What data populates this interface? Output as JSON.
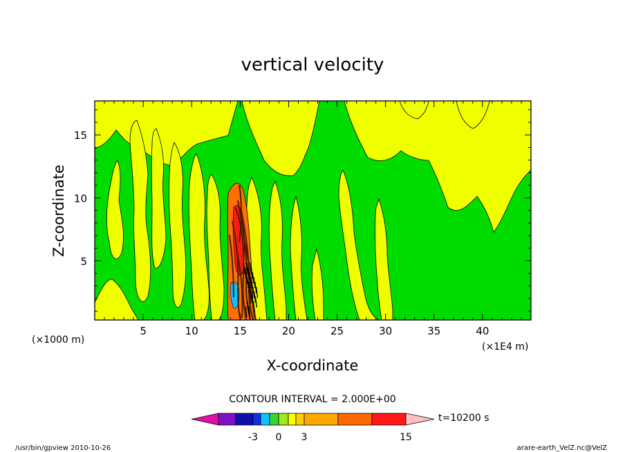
{
  "chart_data": {
    "type": "contour",
    "title": "vertical velocity",
    "xlabel": "X-coordinate",
    "ylabel": "Z-coordinate",
    "x_unit_label": "(×1000 m)",
    "x_scale_label": "(×1E4 m)",
    "xlim": [
      0,
      45
    ],
    "ylim": [
      0.3,
      17.7
    ],
    "x_ticks": [
      5,
      10,
      15,
      20,
      25,
      30,
      35,
      40
    ],
    "y_ticks": [
      5,
      10,
      15
    ],
    "contour_interval_label": "CONTOUR INTERVAL = 2.000E+00",
    "time_label": "t=10200  s",
    "colorbar": {
      "ticks": [
        "-3",
        "0",
        "3",
        "15"
      ],
      "colors": [
        "#e010a8",
        "#8010c8",
        "#1010a8",
        "#1030e8",
        "#10c0ff",
        "#30d830",
        "#a0e820",
        "#ffff00",
        "#ffd000",
        "#ffa800",
        "#ff6800",
        "#ff1818",
        "#ff7878",
        "#ffc0c0"
      ]
    },
    "field_colors": {
      "background": "#00dc00",
      "positive": "#f0ff00",
      "strong": "#ff7000",
      "dark": "#4a2000",
      "negative": "#10c0ff"
    }
  },
  "footer": {
    "left": "/usr/bin/gpview   2010-10-26",
    "right": "arare-earth_VelZ.nc@VelZ"
  }
}
